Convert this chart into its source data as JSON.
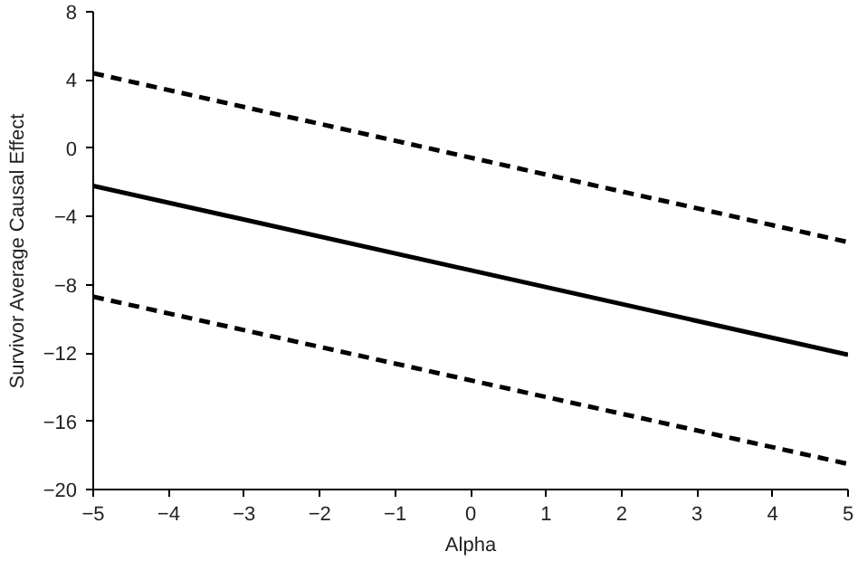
{
  "chart_data": {
    "type": "line",
    "xlabel": "Alpha",
    "ylabel": "Survivor Average Causal Effect",
    "x": [
      -5,
      5
    ],
    "series": [
      {
        "color": "#000000",
        "values": [
          4.4,
          -5.5
        ],
        "line_style": "dashed"
      },
      {
        "color": "#000000",
        "values": [
          -2.2,
          -12.1
        ],
        "line_style": "solid"
      },
      {
        "color": "#000000",
        "values": [
          -8.7,
          -18.5
        ],
        "line_style": "dashed"
      }
    ],
    "xlim": [
      -5,
      5
    ],
    "ylim": [
      -20,
      8
    ],
    "xticks": [
      -5,
      -4,
      -3,
      -2,
      -1,
      0,
      1,
      2,
      3,
      4,
      5
    ],
    "yticks": [
      -20,
      -16,
      -12,
      -8,
      -4,
      0,
      4,
      8
    ]
  }
}
